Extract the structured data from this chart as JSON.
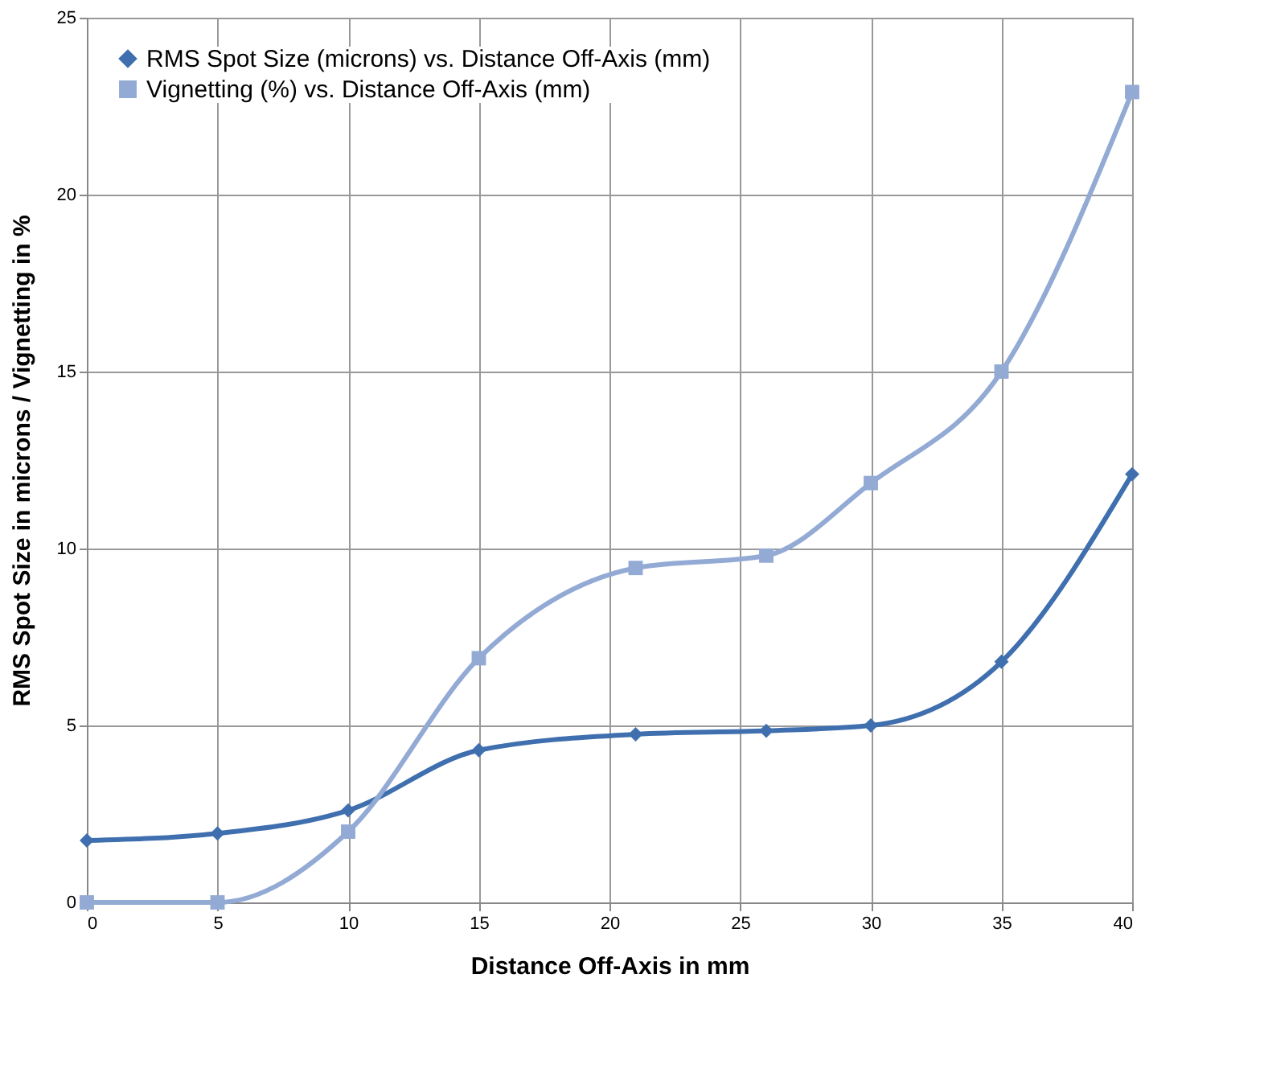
{
  "chart_data": {
    "type": "line",
    "xlabel": "Distance Off-Axis in mm",
    "ylabel": "RMS Spot Size in microns / Vignetting in %",
    "xlim": [
      0,
      40
    ],
    "xticks": [
      0,
      5,
      10,
      15,
      20,
      25,
      30,
      35,
      40
    ],
    "ylim": [
      0,
      25
    ],
    "yticks": [
      0,
      5,
      10,
      15,
      20,
      25
    ],
    "grid": true,
    "legend": "top left",
    "series": [
      {
        "name": "RMS Spot Size (microns) vs. Distance Off-Axis (mm)",
        "color": "#3f6fae",
        "marker": "diamond",
        "x": [
          0,
          5,
          10,
          15,
          21,
          26,
          30,
          35,
          40
        ],
        "values": [
          1.75,
          1.95,
          2.6,
          4.3,
          4.75,
          4.85,
          5.0,
          6.8,
          12.1
        ]
      },
      {
        "name": "Vignetting (%) vs. Distance Off-Axis (mm)",
        "color": "#93aad5",
        "marker": "square",
        "x": [
          0,
          5,
          10,
          15,
          21,
          26,
          30,
          35,
          40
        ],
        "values": [
          0,
          0,
          2.0,
          6.9,
          9.45,
          9.8,
          11.85,
          15.0,
          22.9
        ]
      }
    ]
  }
}
